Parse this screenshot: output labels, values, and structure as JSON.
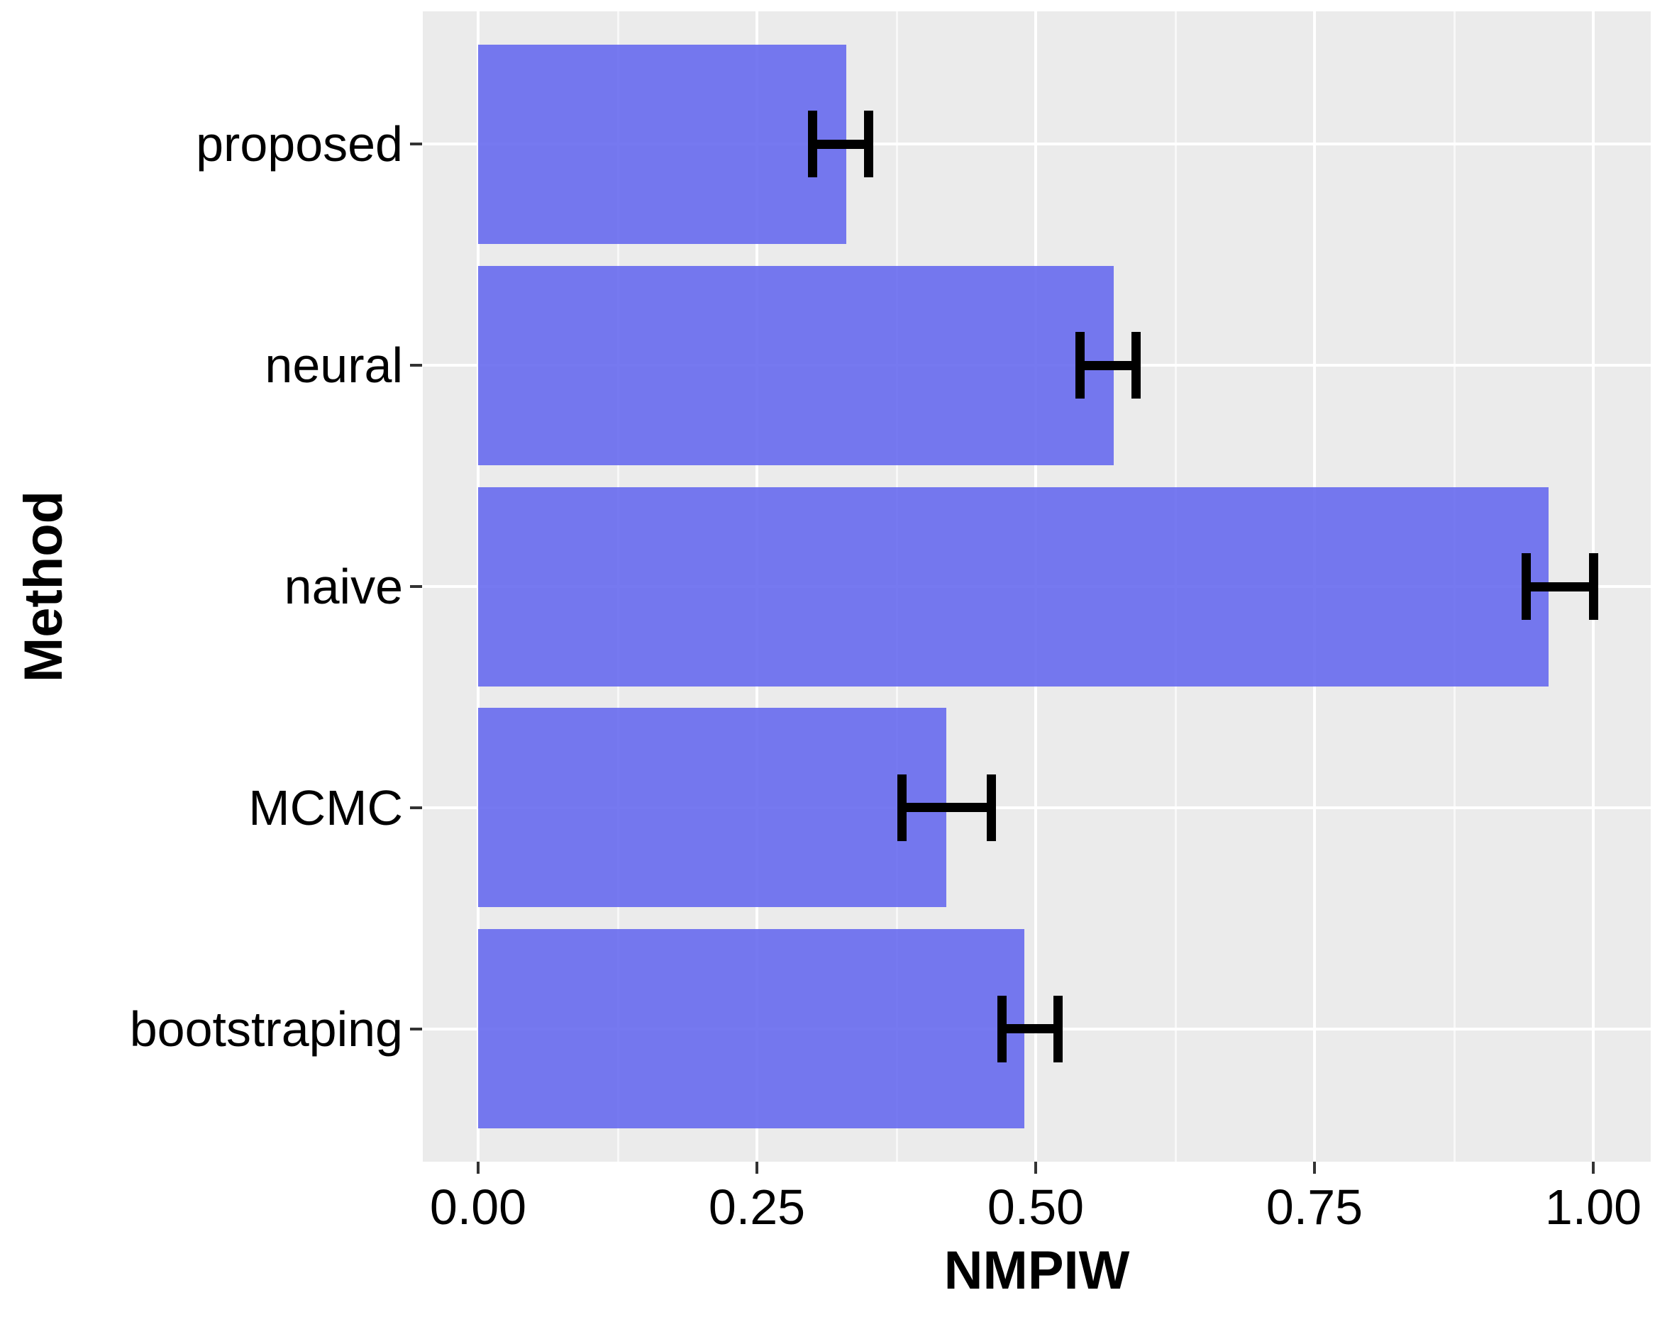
{
  "chart_data": {
    "type": "bar",
    "orientation": "horizontal",
    "title": "",
    "xlabel": "NMPIW",
    "ylabel": "Method",
    "categories": [
      "proposed",
      "neural",
      "naive",
      "MCMC",
      "bootstraping"
    ],
    "values": [
      0.33,
      0.57,
      0.96,
      0.42,
      0.49
    ],
    "error_low": [
      0.3,
      0.54,
      0.94,
      0.38,
      0.47
    ],
    "error_high": [
      0.35,
      0.59,
      1.0,
      0.46,
      0.52
    ],
    "x_ticks": [
      0.0,
      0.25,
      0.5,
      0.75,
      1.0
    ],
    "x_tick_labels": [
      "0.00",
      "0.25",
      "0.50",
      "0.75",
      "1.00"
    ],
    "x_minor_ticks": [
      0.125,
      0.375,
      0.625,
      0.875
    ],
    "xlim": [
      -0.05,
      1.055
    ],
    "grid": true,
    "legend_position": "none",
    "colors": {
      "bar_fill": "#676AEE",
      "bar_alpha": 0.9,
      "panel_background": "#EBEBEB",
      "gridline": "#FFFFFF",
      "tick_mark": "#333333",
      "axis_text": "#000000",
      "error_bar": "#000000"
    }
  }
}
